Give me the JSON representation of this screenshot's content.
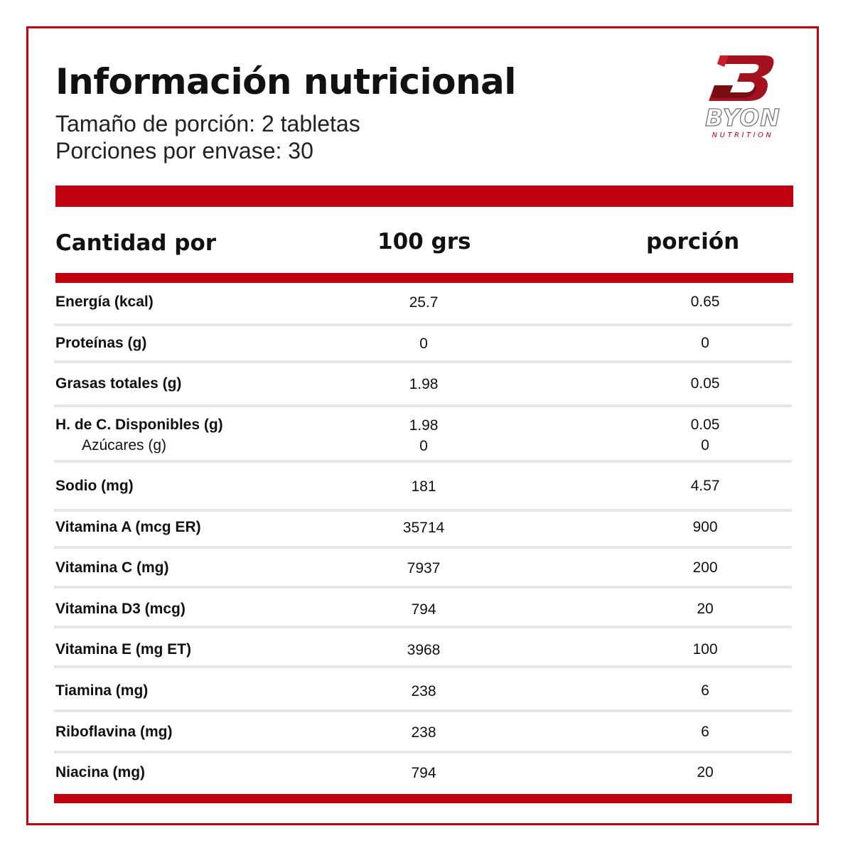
{
  "header": {
    "title": "Información nutricional",
    "serving_size": "Tamaño de porción: 2 tabletas",
    "servings_per_container": "Porciones por envase: 30"
  },
  "logo": {
    "brand": "BYON",
    "tagline": "NUTRITION",
    "colors": {
      "primary": "#a3121e",
      "secondary": "#7a0c14",
      "outline": "#777777"
    }
  },
  "table": {
    "headers": {
      "label": "Cantidad por",
      "per_100": "100 grs",
      "per_portion": "porción"
    },
    "rows": [
      {
        "label": "Energía (kcal)",
        "per_100": "25.7",
        "per_portion": "0.65"
      },
      {
        "label": "Proteínas (g)",
        "per_100": "0",
        "per_portion": "0"
      },
      {
        "label": "Grasas totales (g)",
        "per_100": "1.98",
        "per_portion": "0.05"
      },
      {
        "label": "H. de C. Disponibles (g)",
        "per_100": "1.98",
        "per_portion": "0.05",
        "sub_label": "Azúcares (g)",
        "sub_per_100": "0",
        "sub_per_portion": "0"
      },
      {
        "label": "Sodio (mg)",
        "per_100": "181",
        "per_portion": "4.57"
      },
      {
        "label": "Vitamina A (mcg ER)",
        "per_100": "35714",
        "per_portion": "900"
      },
      {
        "label": "Vitamina C (mg)",
        "per_100": "7937",
        "per_portion": "200"
      },
      {
        "label": "Vitamina D3 (mcg)",
        "per_100": "794",
        "per_portion": "20"
      },
      {
        "label": "Vitamina E (mg ET)",
        "per_100": "3968",
        "per_portion": "100"
      },
      {
        "label": "Tiamina (mg)",
        "per_100": "238",
        "per_portion": "6"
      },
      {
        "label": "Riboflavina (mg)",
        "per_100": "238",
        "per_portion": "6"
      },
      {
        "label": "Niacina (mg)",
        "per_100": "794",
        "per_portion": "20"
      }
    ]
  },
  "colors": {
    "accent_red": "#c0000e",
    "separator": "#e6e6e6",
    "text": "#111111"
  }
}
